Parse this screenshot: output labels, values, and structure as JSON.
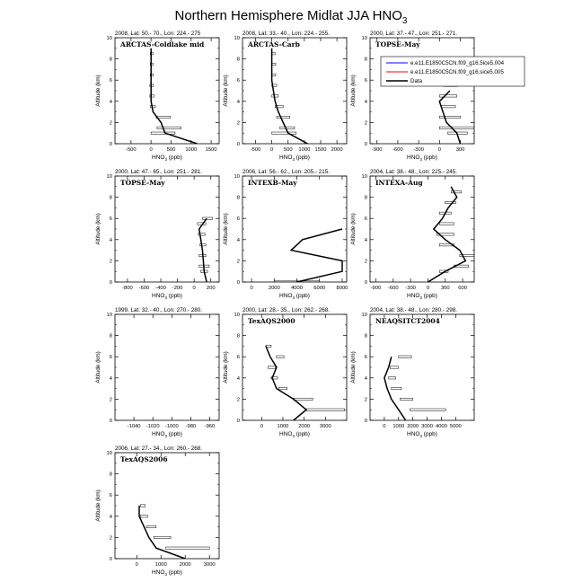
{
  "title": {
    "text": "Northern Hemisphere Midlat JJA HNO",
    "sub": "3"
  },
  "legend": [
    "e.e11.E1850C5CN.f09_g16.5ice5.004",
    "e.e11.E1850C5CN.f09_g16.sice5.005",
    "Data"
  ],
  "colors": {
    "series1": "#0000ff",
    "series2": "#ff0000",
    "data": "#000000"
  },
  "chart_data": [
    {
      "type": "line",
      "location": "2008, Lat: 50.- 70., Lon: 224.- 275",
      "campaign": "ARCTAS-Coldlake mid",
      "xlabel": "HNO",
      "xlabel_sub": "3",
      "xlabel_unit": " (ppb)",
      "ylabel": "Altitude (km)",
      "xlim": [
        -900,
        1700
      ],
      "xticks": [
        -500,
        0,
        500,
        1000,
        1500
      ],
      "ylim": [
        0,
        10
      ],
      "yticks": [
        0,
        2,
        4,
        6,
        8,
        10
      ],
      "points": [
        [
          1150,
          0
        ],
        [
          350,
          1
        ],
        [
          250,
          2
        ],
        [
          50,
          3
        ],
        [
          0,
          4
        ],
        [
          0,
          5
        ],
        [
          0,
          6
        ],
        [
          0,
          7
        ],
        [
          0,
          8
        ],
        [
          0,
          9
        ]
      ],
      "boxes": [
        [
          0,
          0.9,
          1.1,
          600
        ],
        [
          150,
          1.4,
          1.6,
          600
        ],
        [
          130,
          2.4,
          2.6,
          350
        ],
        [
          -20,
          3.4,
          3.6,
          130
        ],
        [
          -30,
          4.4,
          4.6,
          100
        ],
        [
          -30,
          5.4,
          5.6,
          90
        ],
        [
          -20,
          6.4,
          6.6,
          80
        ],
        [
          -20,
          7.4,
          7.6,
          70
        ],
        [
          -20,
          8.4,
          8.6,
          70
        ]
      ]
    },
    {
      "type": "line",
      "location": "2008, Lat: 33.- 40., Lon: 224.- 255.",
      "campaign": "ARCTAS-Carb",
      "xlabel": "HNO",
      "xlabel_sub": "3",
      "xlabel_unit": " (ppb)",
      "ylabel": "Altitude (km)",
      "xlim": [
        -900,
        2300
      ],
      "xticks": [
        -500,
        0,
        500,
        1000,
        1500,
        2000
      ],
      "ylim": [
        0,
        10
      ],
      "yticks": [
        0,
        2,
        4,
        6,
        8,
        10
      ],
      "points": [
        [
          1100,
          0
        ],
        [
          500,
          1
        ],
        [
          350,
          2
        ],
        [
          200,
          3
        ],
        [
          100,
          4
        ],
        [
          50,
          5
        ],
        [
          0,
          6
        ],
        [
          0,
          7
        ],
        [
          0,
          8
        ],
        [
          0,
          9
        ]
      ],
      "boxes": [
        [
          0,
          0.9,
          1.1,
          750
        ],
        [
          250,
          1.4,
          1.6,
          450
        ],
        [
          150,
          2.4,
          2.6,
          400
        ],
        [
          100,
          3.4,
          3.6,
          250
        ],
        [
          0,
          4.4,
          4.6,
          200
        ],
        [
          0,
          5.4,
          5.6,
          150
        ],
        [
          0,
          6.4,
          6.6,
          120
        ],
        [
          0,
          7.4,
          7.6,
          120
        ],
        [
          0,
          8.4,
          8.6,
          100
        ]
      ]
    },
    {
      "type": "line",
      "location": "2000, Lat: 37.- 47., Lon: 251.- 271.",
      "campaign": "TOPSE-May",
      "xlabel": "HNO",
      "xlabel_sub": "3",
      "xlabel_unit": " (ppb)",
      "ylabel": "Altitude (km)",
      "xlim": [
        -1000,
        500
      ],
      "xticks": [
        -900,
        -600,
        -300,
        0,
        300
      ],
      "ylim": [
        0,
        10
      ],
      "yticks": [
        0,
        2,
        4,
        6,
        8,
        10
      ],
      "points": [
        [
          300,
          0
        ],
        [
          250,
          1
        ],
        [
          100,
          2
        ],
        [
          50,
          3
        ],
        [
          0,
          4
        ],
        [
          150,
          5
        ]
      ],
      "boxes": [
        [
          120,
          0.9,
          1.1,
          280
        ],
        [
          0,
          1.4,
          1.6,
          500
        ],
        [
          0,
          2.4,
          2.6,
          300
        ],
        [
          30,
          3.4,
          3.6,
          200
        ],
        [
          0,
          4.4,
          4.6,
          250
        ],
        [
          60,
          5.4,
          5.6,
          200
        ]
      ],
      "legend_here": true
    },
    {
      "type": "line",
      "location": "2000, Lat: 47.- 65., Lon: 251.- 281.",
      "campaign": "TOPSE-May",
      "xlabel": "HNO",
      "xlabel_sub": "3",
      "xlabel_unit": " (ppb)",
      "ylabel": "Altitude (km)",
      "xlim": [
        -950,
        300
      ],
      "xticks": [
        -800,
        -600,
        -400,
        -200,
        0,
        200
      ],
      "ylim": [
        0,
        10
      ],
      "yticks": [
        0,
        2,
        4,
        6,
        8,
        10
      ],
      "points": [
        [
          150,
          0
        ],
        [
          120,
          1
        ],
        [
          110,
          2
        ],
        [
          100,
          3
        ],
        [
          80,
          4
        ],
        [
          60,
          5
        ],
        [
          150,
          6
        ]
      ],
      "boxes": [
        [
          80,
          0.9,
          1.1,
          80
        ],
        [
          60,
          1.4,
          1.6,
          120
        ],
        [
          60,
          2.4,
          2.6,
          80
        ],
        [
          70,
          3.4,
          3.6,
          70
        ],
        [
          50,
          4.4,
          4.6,
          80
        ],
        [
          40,
          5.4,
          5.6,
          100
        ],
        [
          100,
          5.9,
          6.1,
          120
        ]
      ]
    },
    {
      "type": "line",
      "location": "2006, Lat: 56.- 62., Lon: 205.- 215.",
      "campaign": "INTEXB-May",
      "xlabel": "HNO",
      "xlabel_sub": "3",
      "xlabel_unit": " (ppb)",
      "ylabel": "Altitude (km)",
      "xlim": [
        -800,
        8400
      ],
      "xticks": [
        0,
        2000,
        4000,
        6000,
        8000
      ],
      "ylim": [
        0,
        10
      ],
      "yticks": [
        0,
        2,
        4,
        6,
        8,
        10
      ],
      "points": [
        [
          4000,
          0
        ],
        [
          8000,
          1
        ],
        [
          8000,
          2
        ],
        [
          3500,
          3
        ],
        [
          4500,
          4
        ],
        [
          8000,
          5
        ]
      ],
      "boxes": [
        [
          2000,
          -0.1,
          0.1,
          4000
        ]
      ]
    },
    {
      "type": "line",
      "location": "2004, Lat: 38.- 48., Lon: 225.- 245.",
      "campaign": "INTEXA-Aug",
      "xlabel": "HNO",
      "xlabel_sub": "3",
      "xlabel_unit": " (ppb)",
      "ylabel": "Altitude (km)",
      "xlim": [
        -1000,
        800
      ],
      "xticks": [
        -900,
        -600,
        -300,
        0,
        300,
        600
      ],
      "ylim": [
        0,
        10
      ],
      "yticks": [
        0,
        2,
        4,
        6,
        8,
        10
      ],
      "points": [
        [
          0,
          0
        ],
        [
          300,
          1
        ],
        [
          650,
          2
        ],
        [
          550,
          3
        ],
        [
          300,
          4
        ],
        [
          100,
          5
        ],
        [
          250,
          6
        ],
        [
          350,
          7
        ],
        [
          500,
          8
        ],
        [
          400,
          9
        ]
      ],
      "boxes": [
        [
          200,
          0.9,
          1.1,
          150
        ],
        [
          450,
          1.4,
          1.6,
          250
        ],
        [
          550,
          2.4,
          2.6,
          250
        ],
        [
          200,
          3.4,
          3.6,
          250
        ],
        [
          150,
          4.4,
          4.6,
          300
        ],
        [
          200,
          5.4,
          5.6,
          250
        ],
        [
          200,
          6.4,
          6.6,
          200
        ],
        [
          300,
          7.4,
          7.6,
          180
        ],
        [
          400,
          8.4,
          8.6,
          180
        ]
      ]
    },
    {
      "type": "line",
      "location": "1999, Lat: 32.- 40., Lon: 270.- 280.",
      "campaign": "",
      "xlabel": "HNO",
      "xlabel_sub": "3",
      "xlabel_unit": " (ppb)",
      "ylabel": "Altitude (km)",
      "xlim": [
        -1060,
        -950
      ],
      "xticks": [
        -1040,
        -1020,
        -1000,
        -980,
        -960
      ],
      "ylim": [
        0,
        10
      ],
      "yticks": [
        0,
        2,
        4,
        6,
        8,
        10
      ],
      "points": [],
      "boxes": []
    },
    {
      "type": "line",
      "location": "2000, Lat: 28.- 35., Lon: 262.- 268.",
      "campaign": "TexAQS2000",
      "xlabel": "HNO",
      "xlabel_sub": "3",
      "xlabel_unit": " (ppb)",
      "ylabel": "Altitude (km)",
      "xlim": [
        -900,
        4000
      ],
      "xticks": [
        0,
        1000,
        2000,
        3000
      ],
      "ylim": [
        0,
        10
      ],
      "yticks": [
        0,
        2,
        4,
        6,
        8,
        10
      ],
      "points": [
        [
          1500,
          0
        ],
        [
          2100,
          1
        ],
        [
          1500,
          2
        ],
        [
          700,
          3
        ],
        [
          500,
          4
        ],
        [
          700,
          5
        ],
        [
          400,
          6
        ],
        [
          200,
          7
        ]
      ],
      "boxes": [
        [
          2100,
          0.9,
          1.1,
          1800
        ],
        [
          1500,
          1.9,
          2.1,
          900
        ],
        [
          800,
          2.9,
          3.1,
          400
        ],
        [
          450,
          3.9,
          4.1,
          300
        ],
        [
          300,
          4.9,
          5.1,
          350
        ],
        [
          700,
          5.9,
          6.1,
          350
        ],
        [
          200,
          6.9,
          7.1,
          250
        ]
      ]
    },
    {
      "type": "line",
      "location": "2004, Lat: 38.- 48., Lon: 280.- 298.",
      "campaign": "NEAQSITCT2004",
      "xlabel": "HNO",
      "xlabel_sub": "3",
      "xlabel_unit": " (ppb)",
      "ylabel": "Altitude (km)",
      "xlim": [
        -1000,
        6300
      ],
      "xticks": [
        0,
        1000,
        2000,
        3000,
        4000,
        5000
      ],
      "ylim": [
        0,
        10
      ],
      "yticks": [
        0,
        2,
        4,
        6,
        8,
        10
      ],
      "points": [
        [
          1500,
          0
        ],
        [
          1000,
          1
        ],
        [
          500,
          2
        ],
        [
          200,
          3
        ],
        [
          0,
          4
        ],
        [
          300,
          5
        ],
        [
          500,
          6
        ]
      ],
      "boxes": [
        [
          1800,
          0.9,
          1.1,
          2500
        ],
        [
          1100,
          1.9,
          2.1,
          900
        ],
        [
          500,
          2.9,
          3.1,
          700
        ],
        [
          300,
          3.9,
          4.1,
          500
        ],
        [
          400,
          4.9,
          5.1,
          600
        ],
        [
          1000,
          5.9,
          6.1,
          900
        ]
      ]
    },
    {
      "type": "line",
      "location": "2006, Lat: 27.- 34., Lon: 260.- 268.",
      "campaign": "TexAQS2006",
      "xlabel": "HNO",
      "xlabel_sub": "3",
      "xlabel_unit": " (ppb)",
      "ylabel": "Altitude (km)",
      "xlim": [
        -900,
        3400
      ],
      "xticks": [
        0,
        1000,
        2000,
        3000
      ],
      "ylim": [
        0,
        10
      ],
      "yticks": [
        0,
        2,
        4,
        6,
        8,
        10
      ],
      "points": [
        [
          2000,
          0
        ],
        [
          800,
          1
        ],
        [
          500,
          2
        ],
        [
          300,
          3
        ],
        [
          100,
          4
        ],
        [
          100,
          5
        ]
      ],
      "boxes": [
        [
          1200,
          0.9,
          1.1,
          1800
        ],
        [
          700,
          1.9,
          2.1,
          700
        ],
        [
          400,
          2.9,
          3.1,
          400
        ],
        [
          150,
          3.9,
          4.1,
          300
        ],
        [
          150,
          4.9,
          5.1,
          200
        ]
      ]
    }
  ]
}
